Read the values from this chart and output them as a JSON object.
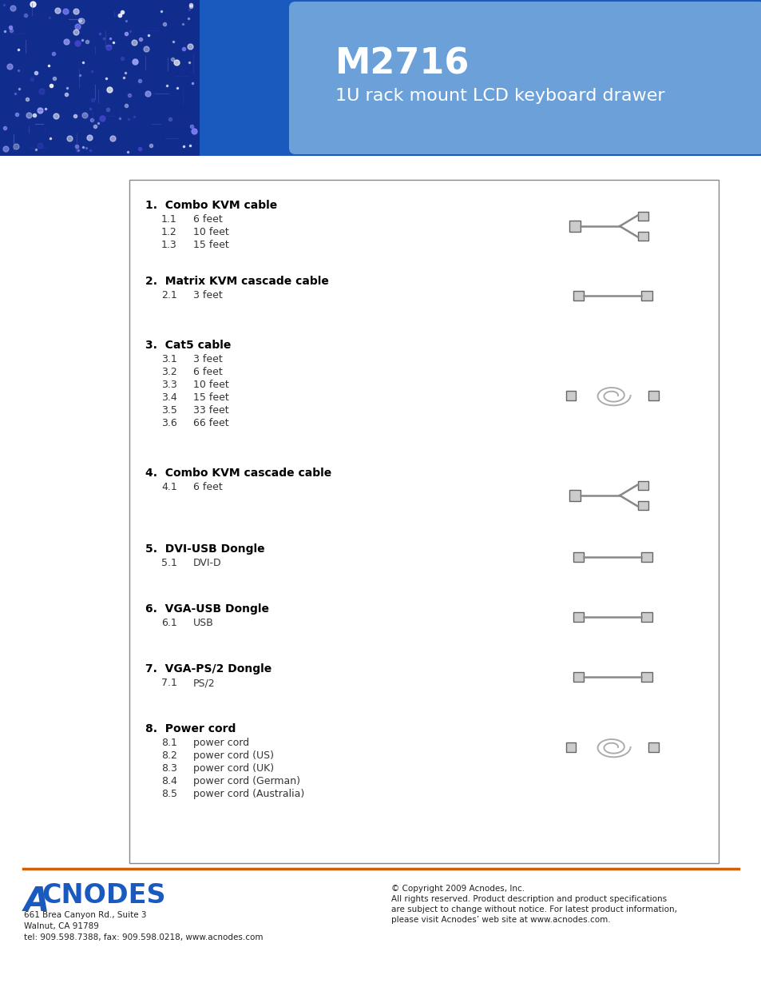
{
  "title": "M2716",
  "subtitle": "1U rack mount LCD keyboard drawer",
  "header_bg_color": "#1a5abf",
  "header_overlay_color": "#6a9fd8",
  "page_bg": "#ffffff",
  "footer_line_color": "#d45f00",
  "footer_logo_text": "ACNODES",
  "footer_logo_A_color": "#1a5abf",
  "footer_logo_rest_color": "#1a5abf",
  "footer_address": "661 Brea Canyon Rd., Suite 3\nWalnut, CA 91789\ntel: 909.598.7388, fax: 909.598.0218, www.acnodes.com",
  "footer_copyright": "© Copyright 2009 Acnodes, Inc.\nAll rights reserved. Product description and product specifications\nare subject to change without notice. For latest product information,\nplease visit Acnodes’ web site at www.acnodes.com.",
  "sections": [
    {
      "num": "1.",
      "title": "Combo KVM cable",
      "items": [
        {
          "num": "1.1",
          "desc": "6 feet"
        },
        {
          "num": "1.2",
          "desc": "10 feet"
        },
        {
          "num": "1.3",
          "desc": "15 feet"
        }
      ]
    },
    {
      "num": "2.",
      "title": "Matrix KVM cascade cable",
      "items": [
        {
          "num": "2.1",
          "desc": "3 feet"
        }
      ]
    },
    {
      "num": "3.",
      "title": "Cat5 cable",
      "items": [
        {
          "num": "3.1",
          "desc": "3 feet"
        },
        {
          "num": "3.2",
          "desc": "6 feet"
        },
        {
          "num": "3.3",
          "desc": "10 feet"
        },
        {
          "num": "3.4",
          "desc": "15 feet"
        },
        {
          "num": "3.5",
          "desc": "33 feet"
        },
        {
          "num": "3.6",
          "desc": "66 feet"
        }
      ]
    },
    {
      "num": "4.",
      "title": "Combo KVM cascade cable",
      "items": [
        {
          "num": "4.1",
          "desc": "6 feet"
        }
      ]
    },
    {
      "num": "5.",
      "title": "DVI-USB Dongle",
      "items": [
        {
          "num": "5.1",
          "desc": "DVI-D"
        }
      ]
    },
    {
      "num": "6.",
      "title": "VGA-USB Dongle",
      "items": [
        {
          "num": "6.1",
          "desc": "USB"
        }
      ]
    },
    {
      "num": "7.",
      "title": "VGA-PS/2 Dongle",
      "items": [
        {
          "num": "7.1",
          "desc": "PS/2"
        }
      ]
    },
    {
      "num": "8.",
      "title": "Power cord",
      "items": [
        {
          "num": "8.1",
          "desc": "power cord"
        },
        {
          "num": "8.2",
          "desc": "power cord (US)"
        },
        {
          "num": "8.3",
          "desc": "power cord (UK)"
        },
        {
          "num": "8.4",
          "desc": "power cord (German)"
        },
        {
          "num": "8.5",
          "desc": "power cord (Australia)"
        }
      ]
    }
  ]
}
